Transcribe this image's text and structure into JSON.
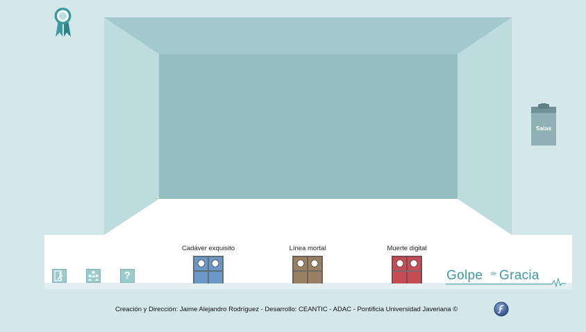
{
  "colors": {
    "background": "#d4e7e9",
    "room_back_wall": "#95bfc0",
    "room_ceiling": "#a2c9cb",
    "room_side_wall": "#bcdcde",
    "room_floor": "#ffffff",
    "accent": "#3d9aa0",
    "clipboard": "#8fb1b4",
    "door_blue": "#6a98c7",
    "door_brown": "#9a8062",
    "door_red": "#c64c55"
  },
  "header": {
    "award_icon": "award-ribbon-icon"
  },
  "side": {
    "clipboard_label": "Salas",
    "clipboard_icon": "clipboard-icon"
  },
  "toolbar": {
    "buttons": [
      {
        "icon": "exit-icon"
      },
      {
        "icon": "people-icon"
      },
      {
        "icon": "help-icon",
        "glyph": "?"
      }
    ]
  },
  "rooms": [
    {
      "label": "Cadáver exquisito",
      "color": "door_blue"
    },
    {
      "label": "Línea mortal",
      "color": "door_brown"
    },
    {
      "label": "Muerte digital",
      "color": "door_red"
    }
  ],
  "logo": {
    "word1": "Golpe",
    "connector": "de",
    "word2": "Gracia"
  },
  "footer": {
    "credits": "Creación y Dirección: Jaime Alejandro Rodríguez - Desarrollo: CEANTIC - ADAC - Pontificia Universidad Javeriana ©",
    "flash_icon": "flash-player-icon"
  }
}
